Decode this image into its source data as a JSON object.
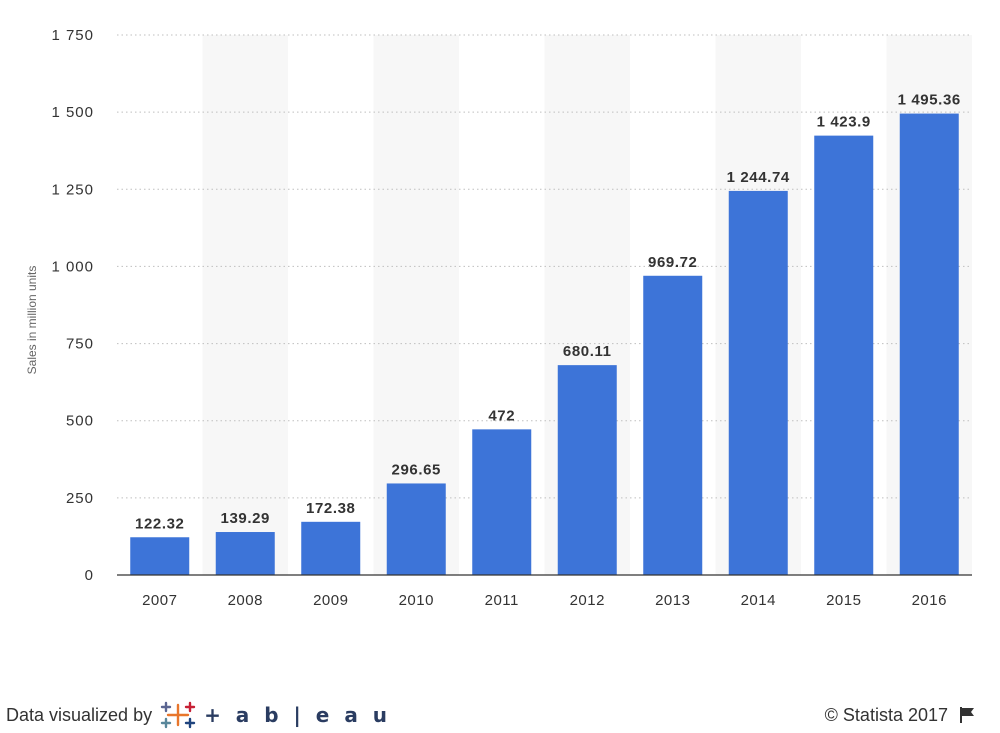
{
  "chart_data": {
    "type": "bar",
    "categories": [
      "2007",
      "2008",
      "2009",
      "2010",
      "2011",
      "2012",
      "2013",
      "2014",
      "2015",
      "2016"
    ],
    "values": [
      122.32,
      139.29,
      172.38,
      296.65,
      472,
      680.11,
      969.72,
      1244.74,
      1423.9,
      1495.36
    ],
    "data_labels": [
      "122.32",
      "139.29",
      "172.38",
      "296.65",
      "472",
      "680.11",
      "969.72",
      "1 244.74",
      "1 423.9",
      "1 495.36"
    ],
    "ylabel": "Sales in million units",
    "xlabel": "",
    "ylim": [
      0,
      1750
    ],
    "yticks": [
      0,
      250,
      500,
      750,
      1000,
      1250,
      1500,
      1750
    ],
    "ytick_labels": [
      "0",
      "250",
      "500",
      "750",
      "1 000",
      "1 250",
      "1 500",
      "1 750"
    ],
    "grid": true,
    "bar_color": "#3d74d8",
    "alternating_band_color": "#f7f7f7"
  },
  "footer": {
    "credit": "Data visualized by",
    "brand": "+ a b | e a u",
    "copyright": "© Statista 2017"
  }
}
